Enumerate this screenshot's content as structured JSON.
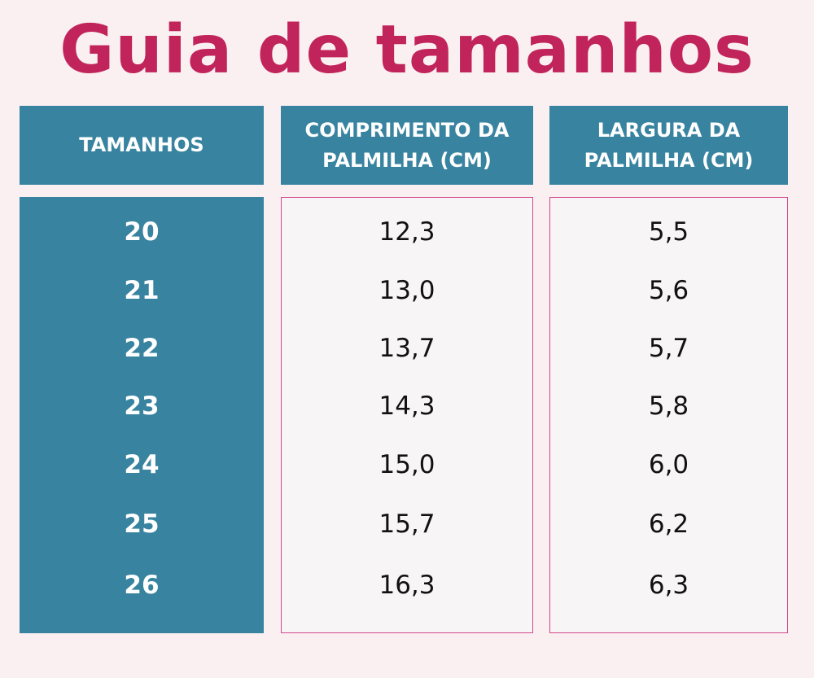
{
  "title": "Guia de tamanhos",
  "headers": {
    "size": "TAMANHOS",
    "length_line1": "COMPRIMENTO DA",
    "length_line2": "PALMILHA (CM)",
    "width_line1": "LARGURA DA",
    "width_line2": "PALMILHA (CM)"
  },
  "rows": [
    {
      "size": "20",
      "length": "12,3",
      "width": "5,5"
    },
    {
      "size": "21",
      "length": "13,0",
      "width": "5,6"
    },
    {
      "size": "22",
      "length": "13,7",
      "width": "5,7"
    },
    {
      "size": "23",
      "length": "14,3",
      "width": "5,8"
    },
    {
      "size": "24",
      "length": "15,0",
      "width": "6,0"
    },
    {
      "size": "25",
      "length": "15,7",
      "width": "6,2"
    },
    {
      "size": "26",
      "length": "16,3",
      "width": "6,3"
    }
  ],
  "colors": {
    "title": "#c0245a",
    "header_bg": "#38839f",
    "border": "#d2478a",
    "background": "#fbf0f1"
  }
}
